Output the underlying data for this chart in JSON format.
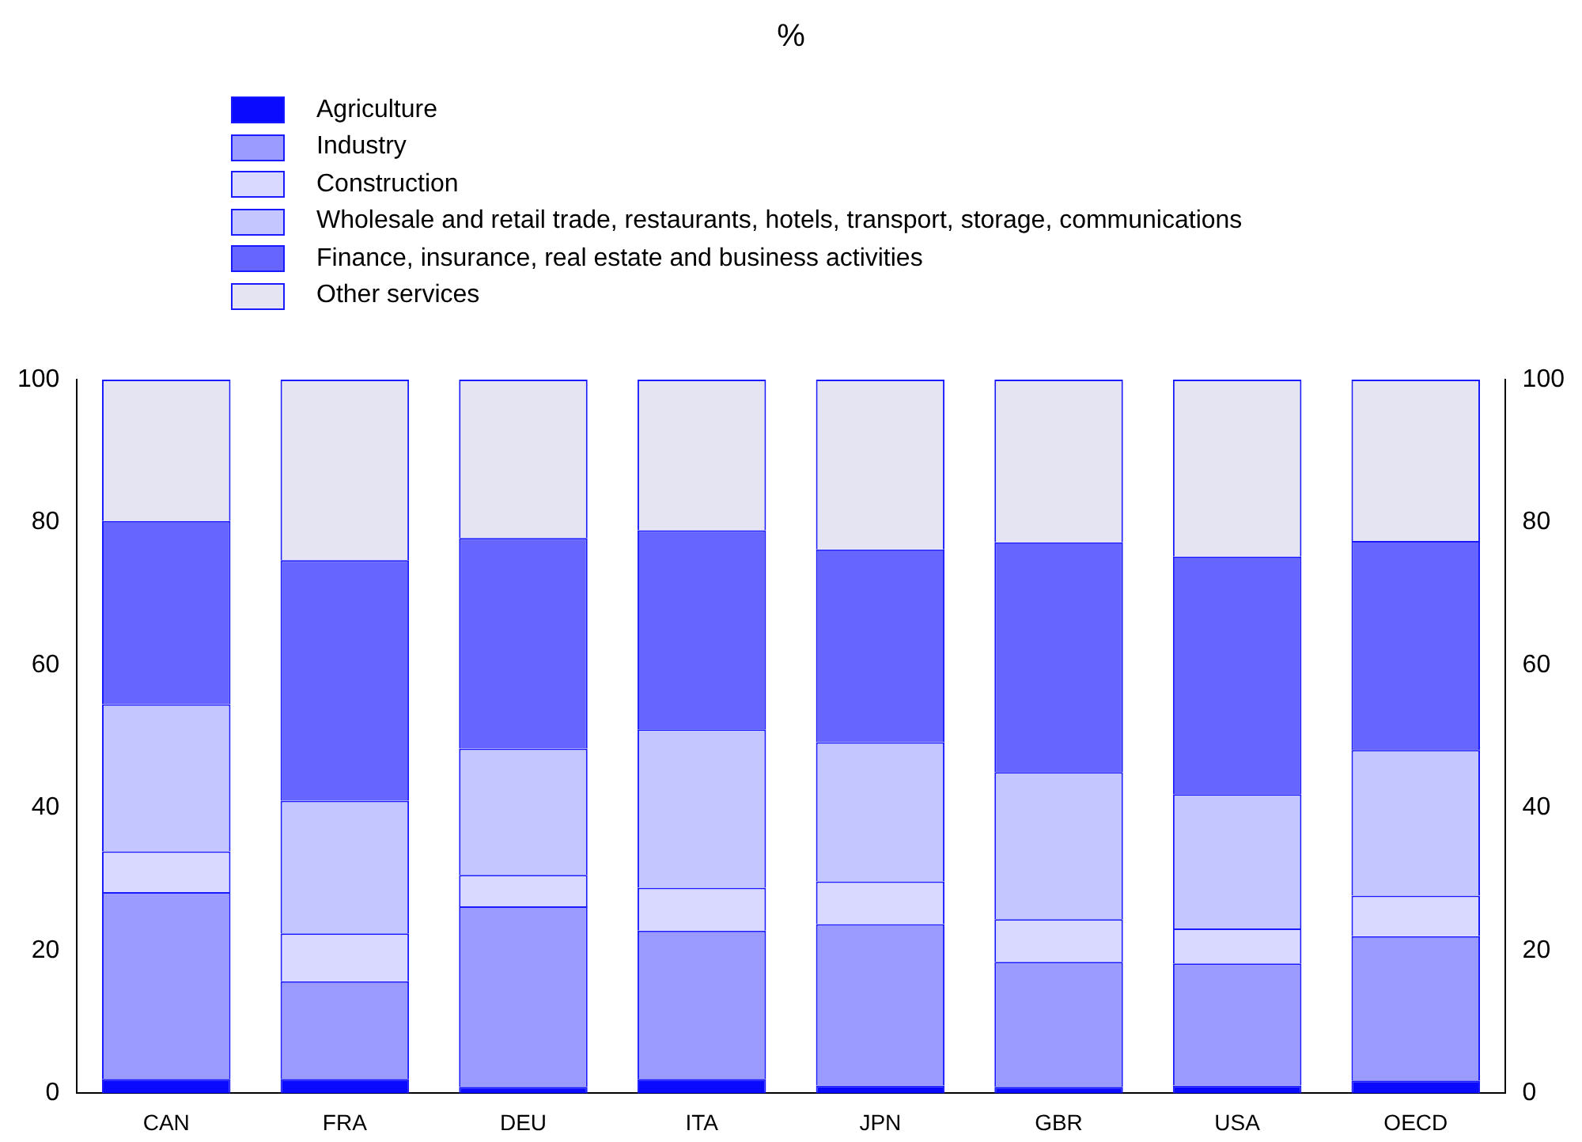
{
  "chart_data": {
    "type": "bar",
    "title": "%",
    "stacked": true,
    "categories": [
      "CAN",
      "FRA",
      "DEU",
      "ITA",
      "JPN",
      "GBR",
      "USA",
      "OECD"
    ],
    "series": [
      {
        "name": "Agriculture",
        "color": "#0a0aff",
        "values": [
          2.0,
          2.0,
          0.9,
          2.0,
          1.1,
          0.9,
          1.1,
          1.8
        ]
      },
      {
        "name": "Industry",
        "color": "#9a9aff",
        "values": [
          26.2,
          13.7,
          25.3,
          20.8,
          22.6,
          17.5,
          17.1,
          20.2
        ]
      },
      {
        "name": "Construction",
        "color": "#d9d9ff",
        "values": [
          5.7,
          6.7,
          4.4,
          6.0,
          6.0,
          6.0,
          4.9,
          5.7
        ]
      },
      {
        "name": "Wholesale and retail trade, restaurants, hotels, transport, storage, communications",
        "color": "#c4c6ff",
        "values": [
          20.6,
          18.6,
          17.7,
          22.2,
          19.5,
          20.6,
          18.8,
          20.4
        ]
      },
      {
        "name": "Finance, insurance, real estate and business activities",
        "color": "#6666ff",
        "values": [
          25.7,
          33.7,
          29.5,
          27.9,
          27.0,
          32.2,
          33.3,
          29.3
        ]
      },
      {
        "name": "Other services",
        "color": "#e4e4f2",
        "values": [
          19.8,
          25.3,
          22.2,
          21.1,
          23.8,
          22.8,
          24.8,
          22.6
        ]
      }
    ],
    "ylim": [
      0,
      100
    ],
    "yticks": [
      0,
      20,
      40,
      60,
      80,
      100
    ],
    "y2lim": [
      0,
      100
    ],
    "y2ticks": [
      0,
      20,
      40,
      60,
      80,
      100
    ],
    "grid": false,
    "legend": "top left"
  }
}
